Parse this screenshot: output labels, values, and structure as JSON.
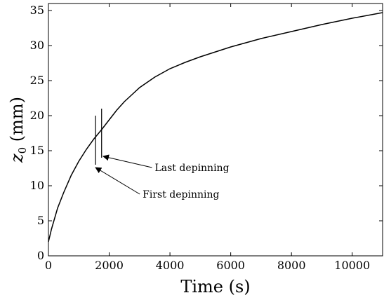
{
  "chart_data": {
    "type": "line",
    "title": "",
    "xlabel": "Time (s)",
    "ylabel_var": "z",
    "ylabel_sub": "0",
    "ylabel_unit": " (mm)",
    "xlim": [
      0,
      11000
    ],
    "ylim": [
      0,
      36
    ],
    "xticks": [
      0,
      2000,
      4000,
      6000,
      8000,
      10000
    ],
    "yticks": [
      0,
      5,
      10,
      15,
      20,
      25,
      30,
      35
    ],
    "grid": false,
    "series": [
      {
        "x": [
          0,
          100,
          300,
          500,
          750,
          1000,
          1250,
          1500,
          1750,
          2000,
          2250,
          2500,
          2750,
          3000,
          3500,
          4000,
          4500,
          5000,
          6000,
          7000,
          8000,
          9000,
          10000,
          11000
        ],
        "y": [
          2.0,
          3.8,
          6.8,
          9.0,
          11.5,
          13.5,
          15.2,
          16.7,
          18.0,
          19.4,
          20.8,
          22.0,
          23.0,
          24.0,
          25.5,
          26.7,
          27.6,
          28.4,
          29.8,
          31.0,
          32.0,
          33.0,
          33.9,
          34.7
        ],
        "color": "#000000"
      }
    ],
    "markers": [
      {
        "x": 1550,
        "y_from": 13,
        "y_to": 20
      },
      {
        "x": 1750,
        "y_from": 14,
        "y_to": 21
      }
    ],
    "annotations": [
      {
        "text": "Last depinning",
        "tip_x": 1800,
        "tip_y": 14.2,
        "text_x": 3500,
        "text_y": 12.1
      },
      {
        "text": "First depinning",
        "tip_x": 1550,
        "tip_y": 12.6,
        "text_x": 3100,
        "text_y": 8.3
      }
    ]
  }
}
